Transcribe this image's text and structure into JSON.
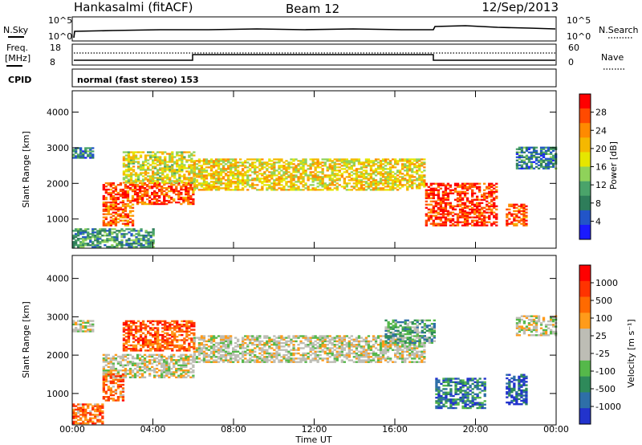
{
  "header": {
    "station": "Hankasalmi (fitACF)",
    "beam": "Beam 12",
    "date": "12/Sep/2013"
  },
  "strip": {
    "nsky_label": "N.Sky",
    "nsearch_label": "N.Search",
    "noise_ticks": [
      "10^5",
      "10^0"
    ],
    "freq_label_1": "Freq.",
    "freq_label_2": "[MHz]",
    "freq_ticks": [
      "18",
      "8"
    ],
    "nave_label": "Nave",
    "nave_ticks": [
      "60",
      "0"
    ],
    "cpid_label": "CPID",
    "cpid_text": "normal (fast stereo) 153"
  },
  "colorbars": {
    "power": {
      "label": "Power [dB]",
      "ticks": [
        "28",
        "24",
        "20",
        "16",
        "12",
        "8",
        "4"
      ],
      "colors": [
        "#1a1aff",
        "#2255c8",
        "#2e7d5a",
        "#4aa36a",
        "#8fd25a",
        "#e6e600",
        "#f5b800",
        "#ff8a00",
        "#ff4a00",
        "#ff0000"
      ]
    },
    "velocity": {
      "label": "Velocity [m s⁻¹]",
      "ticks": [
        "1000",
        "500",
        "100",
        "25",
        "-25",
        "-100",
        "-500",
        "-1000"
      ],
      "colors": [
        "#2233cc",
        "#2e6fa8",
        "#2e8a5a",
        "#55b84a",
        "#bdbdb5",
        "#bdbdb5",
        "#ff9b1a",
        "#ff6a00",
        "#ff3300",
        "#ff0000"
      ]
    }
  },
  "chart_data": [
    {
      "type": "heatmap",
      "quantity": "power",
      "ylabel": "Slant Range [km]",
      "xlabel": "Time UT",
      "xticks": [
        "00:00",
        "04:00",
        "08:00",
        "12:00",
        "16:00",
        "20:00",
        "00:00"
      ],
      "yticks": [
        "1000",
        "2000",
        "3000",
        "4000"
      ],
      "xlim": [
        0,
        24
      ],
      "ylim": [
        180,
        4600
      ],
      "echo_bands": [
        {
          "t0": 0.0,
          "t1": 1.0,
          "r0": 2700,
          "r1": 3000,
          "level": 0.25
        },
        {
          "t0": 1.5,
          "t1": 6.0,
          "r0": 1400,
          "r1": 2000,
          "level": 0.85
        },
        {
          "t0": 1.5,
          "t1": 3.0,
          "r0": 800,
          "r1": 1400,
          "level": 0.8
        },
        {
          "t0": 2.5,
          "t1": 6.0,
          "r0": 2000,
          "r1": 2900,
          "level": 0.55
        },
        {
          "t0": 6.0,
          "t1": 17.5,
          "r0": 1800,
          "r1": 2700,
          "level": 0.6
        },
        {
          "t0": 17.5,
          "t1": 21.0,
          "r0": 800,
          "r1": 2000,
          "level": 0.9
        },
        {
          "t0": 21.5,
          "t1": 22.5,
          "r0": 800,
          "r1": 1400,
          "level": 0.85
        },
        {
          "t0": 22.0,
          "t1": 24.0,
          "r0": 2400,
          "r1": 3000,
          "level": 0.25
        },
        {
          "t0": 0.0,
          "t1": 4.0,
          "r0": 200,
          "r1": 700,
          "level": 0.3
        }
      ]
    },
    {
      "type": "heatmap",
      "quantity": "velocity",
      "ylabel": "Slant Range [km]",
      "xlabel": "Time UT",
      "xticks": [
        "00:00",
        "04:00",
        "08:00",
        "12:00",
        "16:00",
        "20:00",
        "00:00"
      ],
      "yticks": [
        "1000",
        "2000",
        "3000",
        "4000"
      ],
      "xlim": [
        0,
        24
      ],
      "ylim": [
        180,
        4600
      ],
      "echo_bands": [
        {
          "t0": 0.0,
          "t1": 1.0,
          "r0": 2600,
          "r1": 2900,
          "level": 0.5
        },
        {
          "t0": 1.5,
          "t1": 6.0,
          "r0": 1400,
          "r1": 2000,
          "level": 0.5
        },
        {
          "t0": 1.5,
          "t1": 2.5,
          "r0": 800,
          "r1": 1500,
          "level": 0.75
        },
        {
          "t0": 2.5,
          "t1": 6.0,
          "r0": 2100,
          "r1": 2900,
          "level": 0.8
        },
        {
          "t0": 6.0,
          "t1": 17.5,
          "r0": 1800,
          "r1": 2500,
          "level": 0.5
        },
        {
          "t0": 15.5,
          "t1": 18.0,
          "r0": 2300,
          "r1": 2900,
          "level": 0.3
        },
        {
          "t0": 18.0,
          "t1": 20.5,
          "r0": 600,
          "r1": 1400,
          "level": 0.2
        },
        {
          "t0": 21.5,
          "t1": 22.5,
          "r0": 700,
          "r1": 1500,
          "level": 0.1
        },
        {
          "t0": 22.0,
          "t1": 24.0,
          "r0": 2500,
          "r1": 3000,
          "level": 0.5
        },
        {
          "t0": 0.0,
          "t1": 1.5,
          "r0": 200,
          "r1": 700,
          "level": 0.75
        }
      ]
    }
  ]
}
